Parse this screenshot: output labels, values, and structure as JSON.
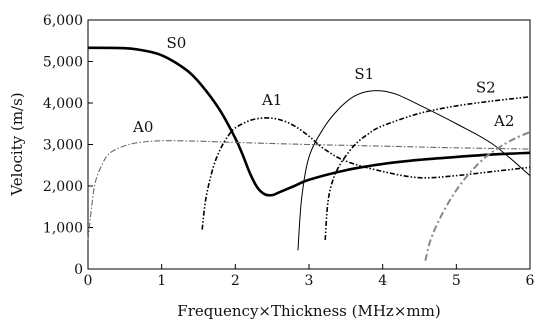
{
  "chart_data": {
    "type": "line",
    "title": "",
    "xlabel": "Frequency×Thickness  (MHz×mm)",
    "ylabel": "Velocity  (m/s)",
    "xlim": [
      0,
      6
    ],
    "ylim": [
      0,
      6000
    ],
    "x_ticks": [
      0,
      1,
      2,
      3,
      4,
      5,
      6
    ],
    "x_tick_labels": [
      "0",
      "1",
      "2",
      "3",
      "4",
      "5",
      "6"
    ],
    "y_ticks": [
      0,
      1000,
      2000,
      3000,
      4000,
      5000,
      6000
    ],
    "y_tick_labels": [
      "0",
      "1,000",
      "2,000",
      "3,000",
      "4,000",
      "5,000",
      "6,000"
    ],
    "grid": false,
    "legend": "none",
    "series": [
      {
        "name": "S0",
        "color": "#000000",
        "style": "solid-thick",
        "points": [
          [
            0,
            5330
          ],
          [
            0.5,
            5320
          ],
          [
            0.8,
            5250
          ],
          [
            1.0,
            5150
          ],
          [
            1.2,
            4960
          ],
          [
            1.4,
            4700
          ],
          [
            1.6,
            4300
          ],
          [
            1.8,
            3800
          ],
          [
            2.0,
            3150
          ],
          [
            2.1,
            2750
          ],
          [
            2.2,
            2300
          ],
          [
            2.3,
            1960
          ],
          [
            2.4,
            1800
          ],
          [
            2.5,
            1780
          ],
          [
            2.6,
            1850
          ],
          [
            2.8,
            2000
          ],
          [
            3.0,
            2150
          ],
          [
            3.5,
            2380
          ],
          [
            4.0,
            2530
          ],
          [
            4.5,
            2630
          ],
          [
            5.0,
            2700
          ],
          [
            5.5,
            2760
          ],
          [
            6.0,
            2800
          ]
        ]
      },
      {
        "name": "A0",
        "color": "#666666",
        "style": "dash-dot",
        "points": [
          [
            0,
            700
          ],
          [
            0.05,
            1500
          ],
          [
            0.1,
            2100
          ],
          [
            0.2,
            2550
          ],
          [
            0.3,
            2800
          ],
          [
            0.5,
            2970
          ],
          [
            0.7,
            3050
          ],
          [
            1.0,
            3090
          ],
          [
            1.5,
            3080
          ],
          [
            2.0,
            3050
          ],
          [
            3.0,
            3000
          ],
          [
            4.0,
            2960
          ],
          [
            5.0,
            2920
          ],
          [
            6.0,
            2890
          ]
        ]
      },
      {
        "name": "A1",
        "color": "#000000",
        "style": "dash-dot-dot",
        "points": [
          [
            1.55,
            950
          ],
          [
            1.6,
            1700
          ],
          [
            1.7,
            2450
          ],
          [
            1.8,
            2900
          ],
          [
            1.9,
            3200
          ],
          [
            2.0,
            3400
          ],
          [
            2.2,
            3580
          ],
          [
            2.4,
            3640
          ],
          [
            2.6,
            3600
          ],
          [
            2.8,
            3450
          ],
          [
            3.0,
            3200
          ],
          [
            3.2,
            2900
          ],
          [
            3.5,
            2600
          ],
          [
            4.0,
            2350
          ],
          [
            4.5,
            2200
          ],
          [
            5.0,
            2250
          ],
          [
            5.5,
            2350
          ],
          [
            6.0,
            2450
          ]
        ]
      },
      {
        "name": "S1",
        "color": "#000000",
        "style": "solid-thin",
        "points": [
          [
            2.85,
            450
          ],
          [
            2.9,
            1700
          ],
          [
            3.0,
            2700
          ],
          [
            3.2,
            3400
          ],
          [
            3.4,
            3850
          ],
          [
            3.6,
            4150
          ],
          [
            3.8,
            4280
          ],
          [
            4.0,
            4290
          ],
          [
            4.2,
            4200
          ],
          [
            4.5,
            3950
          ],
          [
            5.0,
            3500
          ],
          [
            5.5,
            3000
          ],
          [
            6.0,
            2250
          ]
        ]
      },
      {
        "name": "S2",
        "color": "#000000",
        "style": "dash-dot-dot",
        "points": [
          [
            3.22,
            700
          ],
          [
            3.25,
            1500
          ],
          [
            3.3,
            2000
          ],
          [
            3.4,
            2450
          ],
          [
            3.6,
            2950
          ],
          [
            3.8,
            3250
          ],
          [
            4.0,
            3450
          ],
          [
            4.5,
            3750
          ],
          [
            5.0,
            3930
          ],
          [
            5.5,
            4050
          ],
          [
            6.0,
            4150
          ]
        ]
      },
      {
        "name": "A2",
        "color": "#888888",
        "style": "dash-dot-thick",
        "points": [
          [
            4.58,
            200
          ],
          [
            4.65,
            700
          ],
          [
            4.8,
            1300
          ],
          [
            5.0,
            1900
          ],
          [
            5.2,
            2350
          ],
          [
            5.4,
            2700
          ],
          [
            5.6,
            2950
          ],
          [
            5.8,
            3150
          ],
          [
            6.0,
            3300
          ]
        ]
      }
    ],
    "annotations": [
      {
        "text": "S0",
        "x": 1.2,
        "y": 5330
      },
      {
        "text": "A1",
        "x": 2.5,
        "y": 3950
      },
      {
        "text": "S1",
        "x": 3.75,
        "y": 4580
      },
      {
        "text": "S2",
        "x": 5.4,
        "y": 4250
      },
      {
        "text": "A0",
        "x": 0.75,
        "y": 3300
      },
      {
        "text": "A2",
        "x": 5.65,
        "y": 3450
      }
    ]
  }
}
